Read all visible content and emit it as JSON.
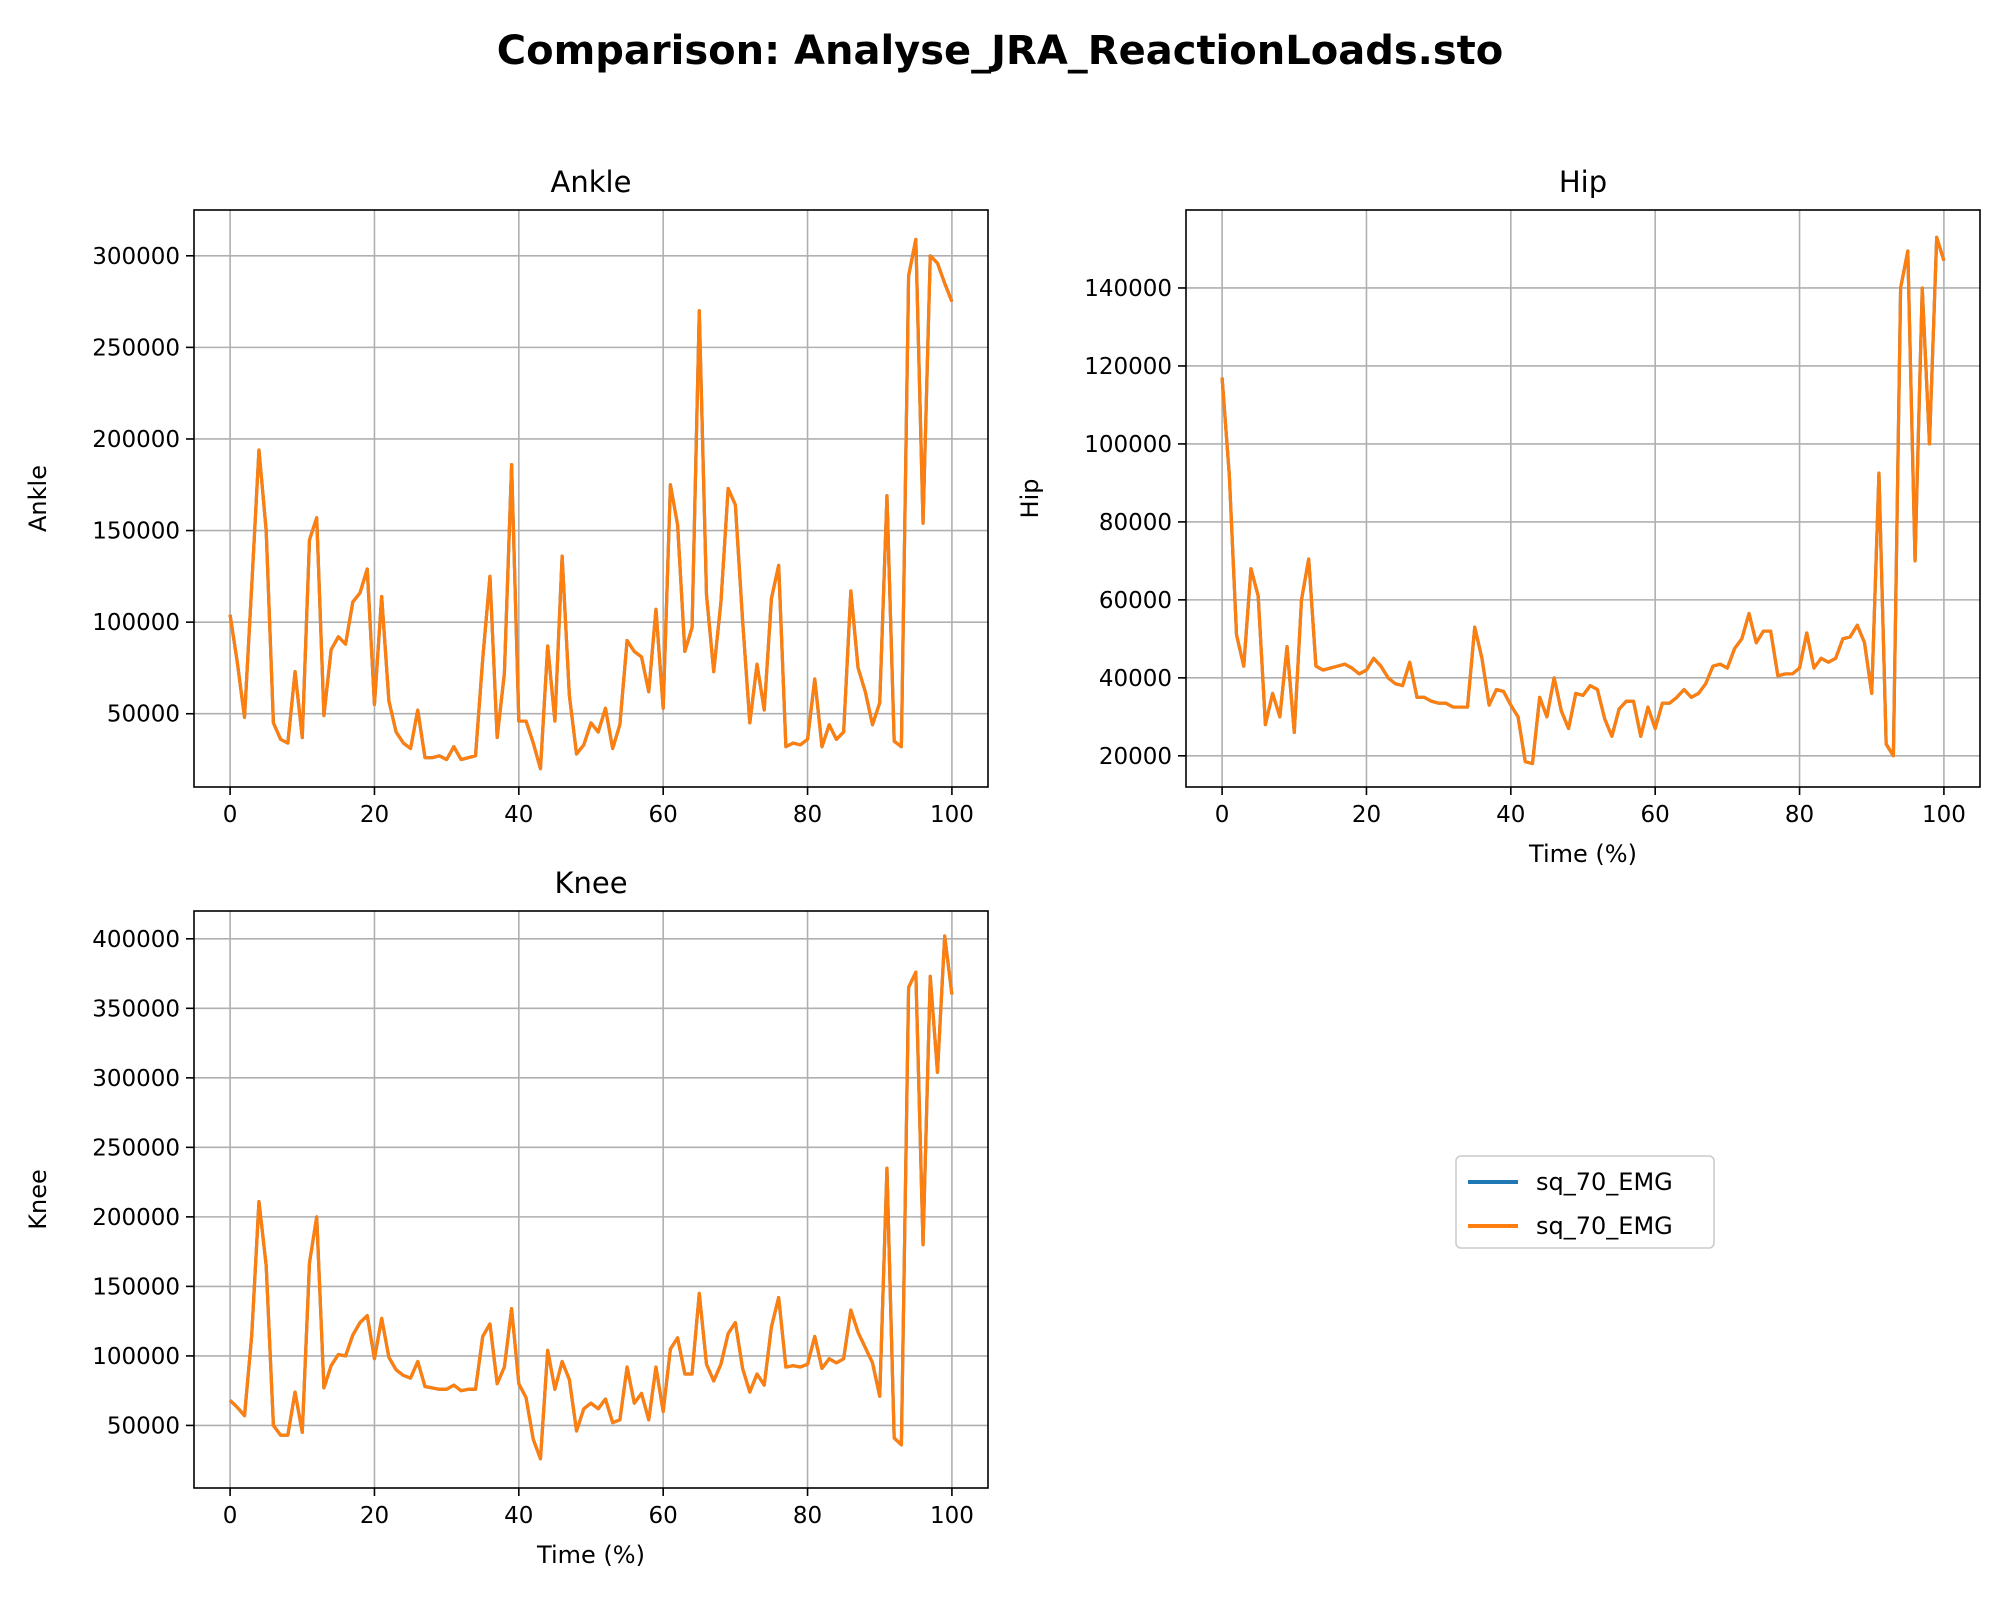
{
  "figure": {
    "suptitle": "Comparison: Analyse_JRA_ReactionLoads.sto"
  },
  "legend": {
    "placement": "center of empty bottom-right panel",
    "entries": [
      {
        "label": "sq_70_EMG",
        "color": "#1f77b4"
      },
      {
        "label": "sq_70_EMG",
        "color": "#ff7f0e"
      }
    ]
  },
  "chart_data": [
    {
      "type": "line",
      "title": "Ankle",
      "xlabel": "",
      "ylabel": "Ankle",
      "xlim": [
        -5,
        105
      ],
      "ylim": [
        10000,
        325000
      ],
      "xticks": [
        0,
        20,
        40,
        60,
        80,
        100
      ],
      "yticks": [
        50000,
        100000,
        150000,
        200000,
        250000,
        300000
      ],
      "grid": true,
      "x": [
        0,
        1,
        2,
        3,
        4,
        5,
        6,
        7,
        8,
        9,
        10,
        11,
        12,
        13,
        14,
        15,
        16,
        17,
        18,
        19,
        20,
        21,
        22,
        23,
        24,
        25,
        26,
        27,
        28,
        29,
        30,
        31,
        32,
        33,
        34,
        35,
        36,
        37,
        38,
        39,
        40,
        41,
        42,
        43,
        44,
        45,
        46,
        47,
        48,
        49,
        50,
        51,
        52,
        53,
        54,
        55,
        56,
        57,
        58,
        59,
        60,
        61,
        62,
        63,
        64,
        65,
        66,
        67,
        68,
        69,
        70,
        71,
        72,
        73,
        74,
        75,
        76,
        77,
        78,
        79,
        80,
        81,
        82,
        83,
        84,
        85,
        86,
        87,
        88,
        89,
        90,
        91,
        92,
        93,
        94,
        95,
        96,
        97,
        98,
        99,
        100
      ],
      "series": [
        {
          "name": "sq_70_EMG",
          "color": "#1f77b4",
          "values": [
            104000,
            78000,
            48000,
            120000,
            194000,
            150000,
            45000,
            36000,
            34000,
            73000,
            37000,
            145000,
            157000,
            49000,
            85000,
            92000,
            88000,
            111000,
            116000,
            129000,
            55000,
            114000,
            57000,
            40000,
            34000,
            31000,
            52000,
            26000,
            26000,
            27000,
            25000,
            32000,
            25000,
            26000,
            27000,
            80000,
            125000,
            37000,
            72000,
            186000,
            46000,
            46000,
            34000,
            20000,
            87000,
            46000,
            136000,
            60000,
            28000,
            33000,
            45000,
            40000,
            53000,
            31000,
            44000,
            90000,
            84000,
            81000,
            62000,
            107000,
            53000,
            175000,
            153000,
            84000,
            97000,
            270000,
            115000,
            73000,
            111000,
            173000,
            164000,
            101000,
            45000,
            77000,
            52000,
            113000,
            131000,
            32000,
            34000,
            33000,
            36000,
            69000,
            32000,
            44000,
            36000,
            40000,
            117000,
            75000,
            62000,
            44000,
            56000,
            169000,
            35000,
            32000,
            289000,
            309000,
            154000,
            300000,
            296000,
            285000,
            275000
          ]
        },
        {
          "name": "sq_70_EMG",
          "color": "#ff7f0e",
          "values": [
            104000,
            78000,
            48000,
            120000,
            194000,
            150000,
            45000,
            36000,
            34000,
            73000,
            37000,
            145000,
            157000,
            49000,
            85000,
            92000,
            88000,
            111000,
            116000,
            129000,
            55000,
            114000,
            57000,
            40000,
            34000,
            31000,
            52000,
            26000,
            26000,
            27000,
            25000,
            32000,
            25000,
            26000,
            27000,
            80000,
            125000,
            37000,
            72000,
            186000,
            46000,
            46000,
            34000,
            20000,
            87000,
            46000,
            136000,
            60000,
            28000,
            33000,
            45000,
            40000,
            53000,
            31000,
            44000,
            90000,
            84000,
            81000,
            62000,
            107000,
            53000,
            175000,
            153000,
            84000,
            97000,
            270000,
            115000,
            73000,
            111000,
            173000,
            164000,
            101000,
            45000,
            77000,
            52000,
            113000,
            131000,
            32000,
            34000,
            33000,
            36000,
            69000,
            32000,
            44000,
            36000,
            40000,
            117000,
            75000,
            62000,
            44000,
            56000,
            169000,
            35000,
            32000,
            289000,
            309000,
            154000,
            300000,
            296000,
            285000,
            275000
          ]
        }
      ]
    },
    {
      "type": "line",
      "title": "Hip",
      "xlabel": "Time (%)",
      "ylabel": "Hip",
      "xlim": [
        -5,
        105
      ],
      "ylim": [
        12000,
        160000
      ],
      "xticks": [
        0,
        20,
        40,
        60,
        80,
        100
      ],
      "yticks": [
        20000,
        40000,
        60000,
        80000,
        100000,
        120000,
        140000
      ],
      "grid": true,
      "x": [
        0,
        1,
        2,
        3,
        4,
        5,
        6,
        7,
        8,
        9,
        10,
        11,
        12,
        13,
        14,
        15,
        16,
        17,
        18,
        19,
        20,
        21,
        22,
        23,
        24,
        25,
        26,
        27,
        28,
        29,
        30,
        31,
        32,
        33,
        34,
        35,
        36,
        37,
        38,
        39,
        40,
        41,
        42,
        43,
        44,
        45,
        46,
        47,
        48,
        49,
        50,
        51,
        52,
        53,
        54,
        55,
        56,
        57,
        58,
        59,
        60,
        61,
        62,
        63,
        64,
        65,
        66,
        67,
        68,
        69,
        70,
        71,
        72,
        73,
        74,
        75,
        76,
        77,
        78,
        79,
        80,
        81,
        82,
        83,
        84,
        85,
        86,
        87,
        88,
        89,
        90,
        91,
        92,
        93,
        94,
        95,
        96,
        97,
        98,
        99,
        100
      ],
      "series": [
        {
          "name": "sq_70_EMG",
          "color": "#1f77b4",
          "values": [
            117000,
            92000,
            51000,
            43000,
            68000,
            61000,
            28000,
            36000,
            30000,
            48000,
            26000,
            60000,
            70500,
            43000,
            42000,
            42500,
            43000,
            43500,
            42500,
            41000,
            42000,
            45000,
            43000,
            40000,
            38500,
            38000,
            44000,
            35000,
            35000,
            34000,
            33500,
            33500,
            32500,
            32500,
            32500,
            53000,
            45000,
            33000,
            37000,
            36500,
            33000,
            30000,
            18500,
            18000,
            35000,
            30000,
            40000,
            31500,
            27000,
            36000,
            35500,
            38000,
            37000,
            29500,
            25000,
            32000,
            34000,
            34000,
            25000,
            32500,
            27000,
            33500,
            33500,
            35000,
            37000,
            35000,
            36000,
            38500,
            43000,
            43500,
            42500,
            47500,
            50000,
            56500,
            49000,
            52000,
            52000,
            40500,
            41000,
            41000,
            42500,
            51500,
            42500,
            45000,
            44000,
            45000,
            50000,
            50500,
            53500,
            49000,
            36000,
            92500,
            23000,
            20000,
            140000,
            149500,
            70000,
            140000,
            100000,
            153000,
            147000
          ]
        },
        {
          "name": "sq_70_EMG",
          "color": "#ff7f0e",
          "values": [
            117000,
            92000,
            51000,
            43000,
            68000,
            61000,
            28000,
            36000,
            30000,
            48000,
            26000,
            60000,
            70500,
            43000,
            42000,
            42500,
            43000,
            43500,
            42500,
            41000,
            42000,
            45000,
            43000,
            40000,
            38500,
            38000,
            44000,
            35000,
            35000,
            34000,
            33500,
            33500,
            32500,
            32500,
            32500,
            53000,
            45000,
            33000,
            37000,
            36500,
            33000,
            30000,
            18500,
            18000,
            35000,
            30000,
            40000,
            31500,
            27000,
            36000,
            35500,
            38000,
            37000,
            29500,
            25000,
            32000,
            34000,
            34000,
            25000,
            32500,
            27000,
            33500,
            33500,
            35000,
            37000,
            35000,
            36000,
            38500,
            43000,
            43500,
            42500,
            47500,
            50000,
            56500,
            49000,
            52000,
            52000,
            40500,
            41000,
            41000,
            42500,
            51500,
            42500,
            45000,
            44000,
            45000,
            50000,
            50500,
            53500,
            49000,
            36000,
            92500,
            23000,
            20000,
            140000,
            149500,
            70000,
            140000,
            100000,
            153000,
            147000
          ]
        }
      ]
    },
    {
      "type": "line",
      "title": "Knee",
      "xlabel": "Time (%)",
      "ylabel": "Knee",
      "xlim": [
        -5,
        105
      ],
      "ylim": [
        5000,
        420000
      ],
      "xticks": [
        0,
        20,
        40,
        60,
        80,
        100
      ],
      "yticks": [
        50000,
        100000,
        150000,
        200000,
        250000,
        300000,
        350000,
        400000
      ],
      "grid": true,
      "x": [
        0,
        1,
        2,
        3,
        4,
        5,
        6,
        7,
        8,
        9,
        10,
        11,
        12,
        13,
        14,
        15,
        16,
        17,
        18,
        19,
        20,
        21,
        22,
        23,
        24,
        25,
        26,
        27,
        28,
        29,
        30,
        31,
        32,
        33,
        34,
        35,
        36,
        37,
        38,
        39,
        40,
        41,
        42,
        43,
        44,
        45,
        46,
        47,
        48,
        49,
        50,
        51,
        52,
        53,
        54,
        55,
        56,
        57,
        58,
        59,
        60,
        61,
        62,
        63,
        64,
        65,
        66,
        67,
        68,
        69,
        70,
        71,
        72,
        73,
        74,
        75,
        76,
        77,
        78,
        79,
        80,
        81,
        82,
        83,
        84,
        85,
        86,
        87,
        88,
        89,
        90,
        91,
        92,
        93,
        94,
        95,
        96,
        97,
        98,
        99,
        100
      ],
      "series": [
        {
          "name": "sq_70_EMG",
          "color": "#1f77b4",
          "values": [
            68000,
            63000,
            57000,
            115000,
            211000,
            165000,
            50000,
            43000,
            43000,
            74000,
            45000,
            167000,
            200000,
            77000,
            93000,
            101000,
            100000,
            115000,
            124000,
            129000,
            98000,
            127000,
            99000,
            90000,
            86000,
            84000,
            96000,
            78000,
            77000,
            76000,
            76000,
            79000,
            75000,
            76000,
            76000,
            114000,
            123000,
            80000,
            92000,
            134000,
            80000,
            70000,
            40000,
            26000,
            104000,
            76000,
            96000,
            83000,
            46000,
            62000,
            66000,
            62000,
            69000,
            52000,
            54000,
            92000,
            66000,
            73000,
            54000,
            92000,
            60000,
            105000,
            113000,
            87000,
            87000,
            145000,
            94000,
            82000,
            94000,
            116000,
            124000,
            91000,
            74000,
            87000,
            79000,
            121000,
            142000,
            92000,
            93000,
            92000,
            94000,
            114000,
            91000,
            98000,
            95000,
            98000,
            133000,
            117000,
            106000,
            95000,
            71000,
            235000,
            41000,
            36000,
            365000,
            376000,
            180000,
            373000,
            304000,
            402000,
            360000
          ]
        },
        {
          "name": "sq_70_EMG",
          "color": "#ff7f0e",
          "values": [
            68000,
            63000,
            57000,
            115000,
            211000,
            165000,
            50000,
            43000,
            43000,
            74000,
            45000,
            167000,
            200000,
            77000,
            93000,
            101000,
            100000,
            115000,
            124000,
            129000,
            98000,
            127000,
            99000,
            90000,
            86000,
            84000,
            96000,
            78000,
            77000,
            76000,
            76000,
            79000,
            75000,
            76000,
            76000,
            114000,
            123000,
            80000,
            92000,
            134000,
            80000,
            70000,
            40000,
            26000,
            104000,
            76000,
            96000,
            83000,
            46000,
            62000,
            66000,
            62000,
            69000,
            52000,
            54000,
            92000,
            66000,
            73000,
            54000,
            92000,
            60000,
            105000,
            113000,
            87000,
            87000,
            145000,
            94000,
            82000,
            94000,
            116000,
            124000,
            91000,
            74000,
            87000,
            79000,
            121000,
            142000,
            92000,
            93000,
            92000,
            94000,
            114000,
            91000,
            98000,
            95000,
            98000,
            133000,
            117000,
            106000,
            95000,
            71000,
            235000,
            41000,
            36000,
            365000,
            376000,
            180000,
            373000,
            304000,
            402000,
            360000
          ]
        }
      ]
    }
  ]
}
